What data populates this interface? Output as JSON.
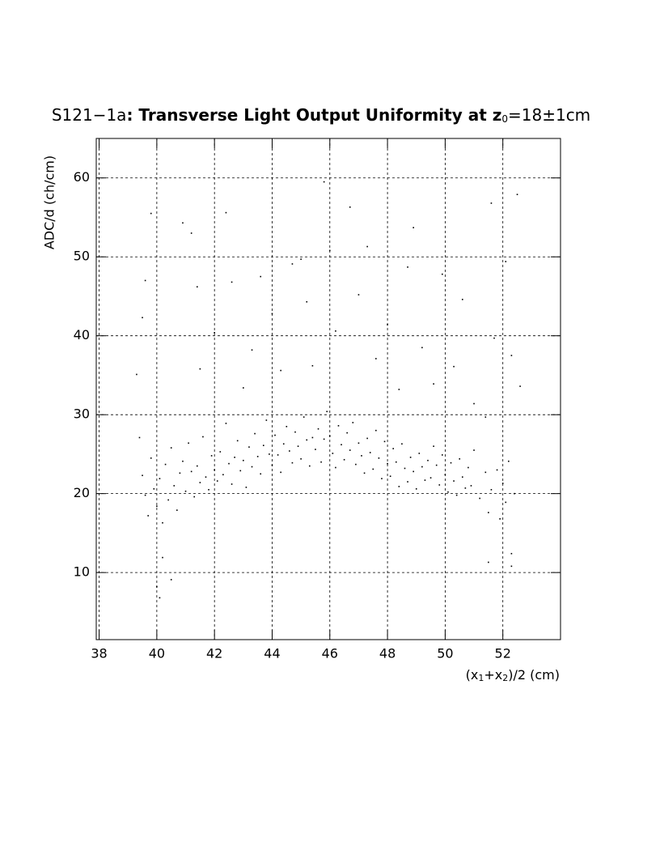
{
  "chart_data": {
    "type": "scatter",
    "title": [
      "S121−1a",
      ": Transverse Light Output Uniformity at z",
      "0",
      "=18±1cm"
    ],
    "y_label": "ADC/d (ch/cm)",
    "x_label": [
      "(x",
      "1",
      "+x",
      "2",
      ")/2 (cm)"
    ],
    "color": "#000000",
    "grid": true,
    "xlim": [
      37.9,
      54
    ],
    "ylim": [
      1.5,
      65
    ],
    "xticks": [
      38,
      40,
      42,
      44,
      46,
      48,
      50,
      52
    ],
    "yticks": [
      10,
      20,
      30,
      40,
      50,
      60
    ],
    "x": [
      39.4,
      39.5,
      39.6,
      39.7,
      39.8,
      39.9,
      40.0,
      40.1,
      40.2,
      40.3,
      40.4,
      40.5,
      40.6,
      40.7,
      40.8,
      40.9,
      41.0,
      41.1,
      41.2,
      41.3,
      41.4,
      41.5,
      41.6,
      41.7,
      41.8,
      41.9,
      42.0,
      42.1,
      42.2,
      42.3,
      42.4,
      42.5,
      42.6,
      42.7,
      42.8,
      42.9,
      43.0,
      43.1,
      43.2,
      43.3,
      43.4,
      43.5,
      43.6,
      43.7,
      43.8,
      43.9,
      44.0,
      44.1,
      44.2,
      44.3,
      44.4,
      44.5,
      44.6,
      44.7,
      44.8,
      44.9,
      45.0,
      45.1,
      45.2,
      45.3,
      45.4,
      45.5,
      45.6,
      45.7,
      45.8,
      45.9,
      46.0,
      46.1,
      46.2,
      46.3,
      46.4,
      46.5,
      46.6,
      46.7,
      46.8,
      46.9,
      47.0,
      47.1,
      47.2,
      47.3,
      47.4,
      47.5,
      47.6,
      47.7,
      47.8,
      47.9,
      48.0,
      48.1,
      48.2,
      48.3,
      48.4,
      48.5,
      48.6,
      48.7,
      48.8,
      48.9,
      49.0,
      49.1,
      49.2,
      49.3,
      49.4,
      49.5,
      49.6,
      49.7,
      49.8,
      49.9,
      50.0,
      50.1,
      50.2,
      50.3,
      50.4,
      50.5,
      50.6,
      50.7,
      50.8,
      50.9,
      51.0,
      51.2,
      51.4,
      51.5,
      51.6,
      51.8,
      51.9,
      52.0,
      52.1,
      52.2,
      52.3,
      52.4,
      39.3,
      39.5,
      39.6,
      39.8,
      40.0,
      40.2,
      40.5,
      40.9,
      41.2,
      41.4,
      41.5,
      42.0,
      42.4,
      42.6,
      43.0,
      43.3,
      43.6,
      44.0,
      44.3,
      44.7,
      45.0,
      45.2,
      45.4,
      45.8,
      46.0,
      46.2,
      46.7,
      47.0,
      47.3,
      47.6,
      48.0,
      48.4,
      48.7,
      48.9,
      49.2,
      49.6,
      49.9,
      50.3,
      50.6,
      51.0,
      51.4,
      51.6,
      51.7,
      52.1,
      52.3,
      52.5,
      52.6,
      52.3,
      51.5,
      40.1
    ],
    "values": [
      27.1,
      22.3,
      19.8,
      17.2,
      24.5,
      20.6,
      18.4,
      21.9,
      16.3,
      23.7,
      19.2,
      25.8,
      21.0,
      17.9,
      22.6,
      24.1,
      20.3,
      26.4,
      22.8,
      19.6,
      23.5,
      21.4,
      27.2,
      22.1,
      20.5,
      24.8,
      23.0,
      21.6,
      25.3,
      22.4,
      28.9,
      23.8,
      21.2,
      24.6,
      26.7,
      22.9,
      24.2,
      20.8,
      25.9,
      23.4,
      27.6,
      24.7,
      22.5,
      26.1,
      29.3,
      25.0,
      23.6,
      27.4,
      24.9,
      22.7,
      26.3,
      28.5,
      25.4,
      23.9,
      27.8,
      26.0,
      24.4,
      29.7,
      26.8,
      23.5,
      27.1,
      25.6,
      28.2,
      24.0,
      26.9,
      30.4,
      27.3,
      25.1,
      23.3,
      28.6,
      26.2,
      24.3,
      27.7,
      25.5,
      29.0,
      23.7,
      26.4,
      24.8,
      22.6,
      27.0,
      25.2,
      23.1,
      28.0,
      24.5,
      21.9,
      26.6,
      23.8,
      22.2,
      25.7,
      24.0,
      20.9,
      26.3,
      23.2,
      21.5,
      24.6,
      22.8,
      20.6,
      25.1,
      23.4,
      21.7,
      24.2,
      22.0,
      26.0,
      23.6,
      21.1,
      24.9,
      22.4,
      20.2,
      23.9,
      21.6,
      19.8,
      24.4,
      22.1,
      20.7,
      23.3,
      21.0,
      25.5,
      19.4,
      22.7,
      17.6,
      20.5,
      23.0,
      16.8,
      21.3,
      18.9,
      24.1,
      12.4,
      20.0,
      35.1,
      42.3,
      47.0,
      55.5,
      8.2,
      11.9,
      9.1,
      54.3,
      53.0,
      46.2,
      35.8,
      40.4,
      55.6,
      46.8,
      33.4,
      38.2,
      47.5,
      42.8,
      35.6,
      49.1,
      49.7,
      44.3,
      36.2,
      59.5,
      50.8,
      40.6,
      56.3,
      45.2,
      51.3,
      37.1,
      41.4,
      33.2,
      48.7,
      53.7,
      38.5,
      33.9,
      47.8,
      36.1,
      44.6,
      31.4,
      29.7,
      56.8,
      39.7,
      49.4,
      37.5,
      57.9,
      33.6,
      10.8,
      11.3,
      6.8
    ]
  }
}
